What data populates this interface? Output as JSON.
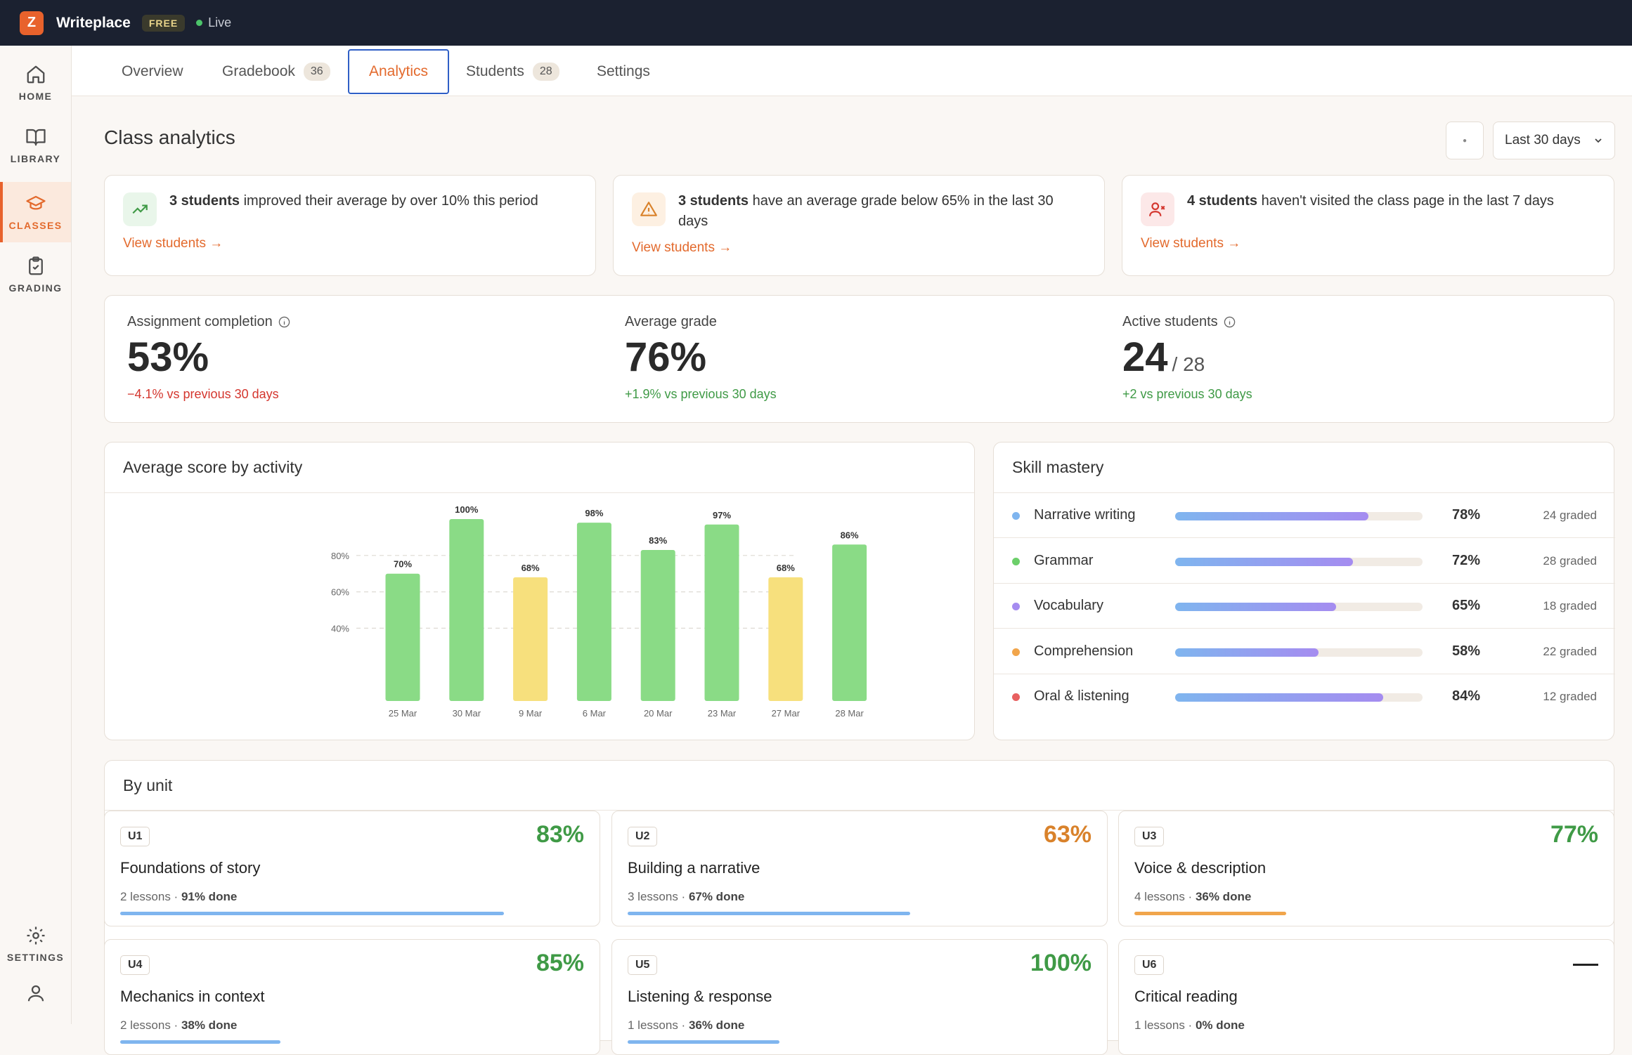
{
  "app": {
    "logo_letter": "Z",
    "name": "Writeplace",
    "plan": "FREE",
    "status": "Live"
  },
  "sidebar": {
    "items": [
      {
        "label": "HOME",
        "icon": "home-icon",
        "active": false
      },
      {
        "label": "LIBRARY",
        "icon": "book-icon",
        "active": false
      },
      {
        "label": "CLASSES",
        "icon": "graduation-cap-icon",
        "active": true
      },
      {
        "label": "GRADING",
        "icon": "clipboard-check-icon",
        "active": false
      }
    ],
    "bottom": [
      {
        "label": "SETTINGS",
        "icon": "gear-icon"
      },
      {
        "label": "",
        "icon": "user-icon"
      }
    ]
  },
  "tabs": [
    {
      "label": "Overview",
      "count": ""
    },
    {
      "label": "Gradebook",
      "count": "36"
    },
    {
      "label": "Analytics",
      "count": "",
      "active": true
    },
    {
      "label": "Students",
      "count": "28"
    },
    {
      "label": "Settings",
      "count": ""
    }
  ],
  "page": {
    "title": "Class analytics",
    "range": "Last 30 days"
  },
  "alerts": [
    {
      "strong": "3 students",
      "text": " improved their average by over 10% this period",
      "link": "View students →",
      "color": "#3f9a46",
      "bg": "#e9f6ea",
      "icon": "trend-up-icon"
    },
    {
      "strong": "3 students",
      "text": " have an average grade below 65% in the last 30 days",
      "link": "View students →",
      "color": "#d9822b",
      "bg": "#fdf0e2",
      "icon": "warning-icon"
    },
    {
      "strong": "4 students",
      "text": " haven't visited the class page in the last 7 days",
      "link": "View students →",
      "color": "#d4362e",
      "bg": "#fce8e8",
      "icon": "user-x-icon"
    }
  ],
  "metrics": [
    {
      "label": "Assignment completion",
      "value": "53%",
      "denom": "",
      "delta": "−4.1% vs previous 30 days",
      "trend": "neg",
      "info": true
    },
    {
      "label": "Average grade",
      "value": "76%",
      "denom": "",
      "delta": "+1.9% vs previous 30 days",
      "trend": "pos",
      "info": false
    },
    {
      "label": "Active students",
      "value": "24",
      "denom": "/ 28",
      "delta": "+2 vs previous 30 days",
      "trend": "pos",
      "info": true
    }
  ],
  "chart_card": {
    "title": "Average score by activity"
  },
  "chart_data": {
    "type": "bar",
    "title": "Average score by activity",
    "categories": [
      "25 Mar",
      "30 Mar",
      "9 Mar",
      "6 Mar",
      "20 Mar",
      "23 Mar",
      "27 Mar",
      "28 Mar"
    ],
    "values": [
      70,
      100,
      68,
      98,
      83,
      97,
      68,
      86
    ],
    "data_labels": [
      "70%",
      "100%",
      "68%",
      "98%",
      "83%",
      "97%",
      "68%",
      "86%"
    ],
    "bar_colors": [
      "#8adb86",
      "#8adb86",
      "#f7e07d",
      "#8adb86",
      "#8adb86",
      "#8adb86",
      "#f7e07d",
      "#8adb86"
    ],
    "yticks": [
      40,
      60,
      80
    ],
    "ytick_labels": [
      "40%",
      "60%",
      "80%"
    ],
    "grid": true
  },
  "skills": {
    "title": "Skill mastery",
    "items": [
      {
        "name": "Narrative writing",
        "pct": 78,
        "pct_label": "78%",
        "graded": "24 graded",
        "color": "#7fb5ef"
      },
      {
        "name": "Grammar",
        "pct": 72,
        "pct_label": "72%",
        "graded": "28 graded",
        "color": "#6ccf6a"
      },
      {
        "name": "Vocabulary",
        "pct": 65,
        "pct_label": "65%",
        "graded": "18 graded",
        "color": "#a58cf0"
      },
      {
        "name": "Comprehension",
        "pct": 58,
        "pct_label": "58%",
        "graded": "22 graded",
        "color": "#f1a54b"
      },
      {
        "name": "Oral & listening",
        "pct": 84,
        "pct_label": "84%",
        "graded": "12 graded",
        "color": "#e86060"
      }
    ]
  },
  "units": {
    "title": "By unit",
    "items": [
      {
        "code": "U1",
        "pct": "83%",
        "name": "Foundations of story",
        "lessons": "2 lessons",
        "done": "91% done",
        "progress": 91,
        "pct_color": "#3f9a46",
        "bar_color": "#7fb5ef"
      },
      {
        "code": "U2",
        "pct": "63%",
        "name": "Building a narrative",
        "lessons": "3 lessons",
        "done": "67% done",
        "progress": 67,
        "pct_color": "#d9822b",
        "bar_color": "#7fb5ef"
      },
      {
        "code": "U3",
        "pct": "77%",
        "name": "Voice & description",
        "lessons": "4 lessons",
        "done": "36% done",
        "progress": 36,
        "pct_color": "#3f9a46",
        "bar_color": "#f1a54b"
      },
      {
        "code": "U4",
        "pct": "85%",
        "name": "Mechanics in context",
        "lessons": "2 lessons",
        "done": "38% done",
        "progress": 38,
        "pct_color": "#3f9a46",
        "bar_color": "#7fb5ef"
      },
      {
        "code": "U5",
        "pct": "100%",
        "name": "Listening & response",
        "lessons": "1 lessons",
        "done": "36% done",
        "progress": 36,
        "pct_color": "#3f9a46",
        "bar_color": "#7fb5ef"
      },
      {
        "code": "U6",
        "pct": "",
        "name": "Critical reading",
        "lessons": "1 lessons",
        "done": "0% done",
        "progress": 0,
        "pct_color": "#222",
        "bar_color": "#7fb5ef",
        "no_score": true
      }
    ]
  }
}
